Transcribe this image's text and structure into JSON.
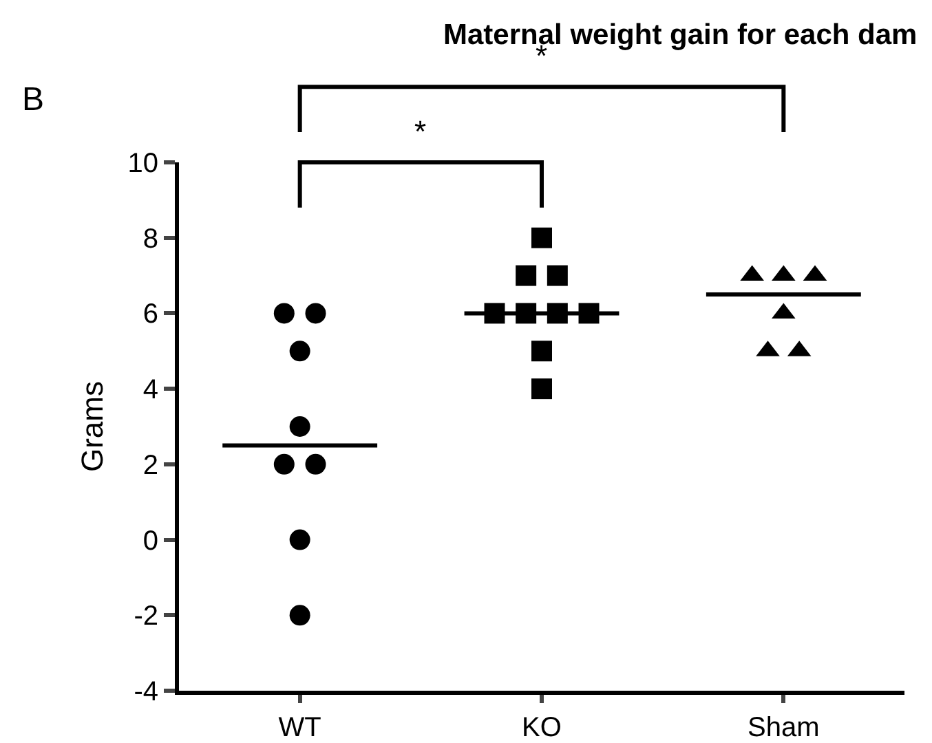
{
  "chart_data": {
    "type": "scatter",
    "title": "Maternal weight gain for each dam",
    "ylabel": "Grams",
    "categories": [
      "WT",
      "KO",
      "Sham"
    ],
    "series": [
      {
        "type": "scatter",
        "marker": "circle",
        "color": "#000000",
        "x": [
          "WT",
          "WT",
          "WT",
          "WT",
          "WT",
          "WT",
          "WT",
          "WT"
        ],
        "values": [
          6,
          6,
          5,
          3,
          2,
          2,
          0,
          -2
        ]
      },
      {
        "type": "scatter",
        "marker": "square",
        "color": "#000000",
        "x": [
          "KO",
          "KO",
          "KO",
          "KO",
          "KO",
          "KO",
          "KO",
          "KO",
          "KO"
        ],
        "values": [
          8,
          7,
          7,
          6,
          6,
          6,
          6,
          5,
          4
        ]
      },
      {
        "type": "scatter",
        "marker": "triangle",
        "color": "#000000",
        "x": [
          "Sham",
          "Sham",
          "Sham",
          "Sham",
          "Sham",
          "Sham"
        ],
        "values": [
          7,
          7,
          7,
          6,
          5,
          5
        ]
      },
      {
        "type": "box",
        "color": "#000000",
        "boxes": [
          {
            "low": 2.5,
            "q1": 2.5,
            "median": 2.5,
            "q3": 2.5,
            "high": 2.5
          },
          {
            "low": 6,
            "q1": 6,
            "median": 6,
            "q3": 6,
            "high": 6
          },
          {
            "low": 6.5,
            "q1": 6.5,
            "median": 6.5,
            "q3": 6.5,
            "high": 6.5
          }
        ]
      }
    ],
    "annotations": [
      "B",
      "*",
      "*"
    ],
    "ylim": [
      -4,
      10
    ],
    "yticks": [
      -4,
      -2,
      0,
      2,
      4,
      6,
      8,
      10
    ]
  }
}
